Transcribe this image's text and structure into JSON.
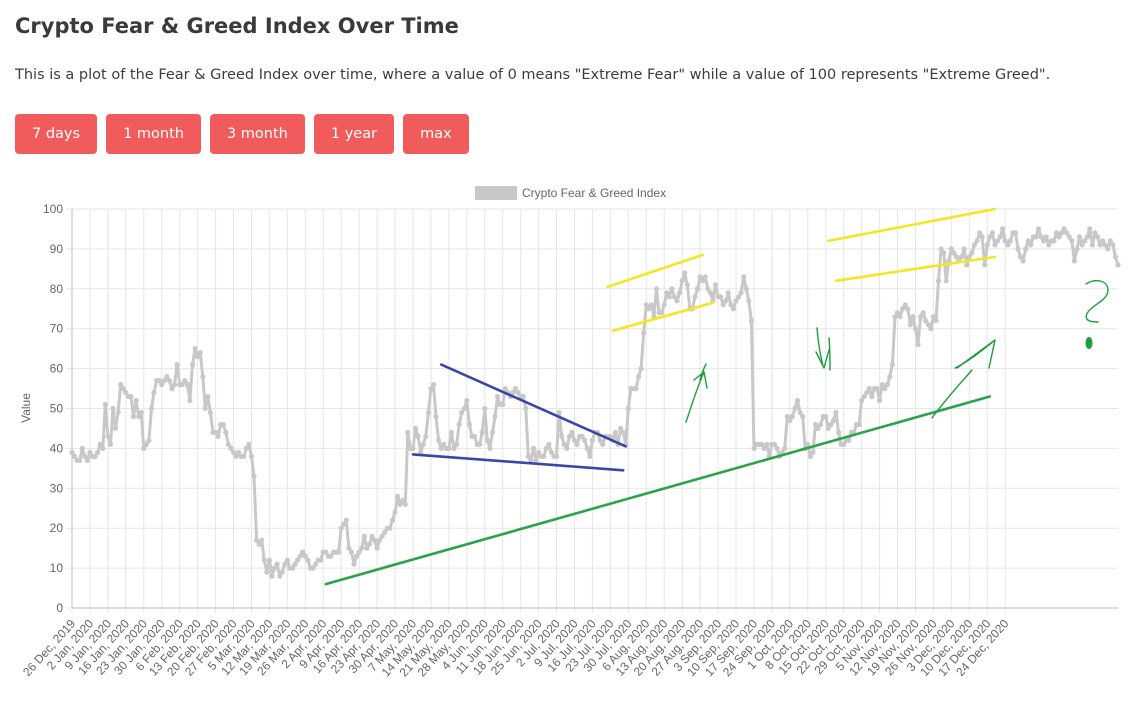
{
  "page": {
    "title": "Crypto Fear & Greed Index Over Time",
    "description": "This is a plot of the Fear & Greed Index over time, where a value of 0 means \"Extreme Fear\" while a value of 100 represents \"Extreme Greed\"."
  },
  "buttons": [
    {
      "label": "7 days"
    },
    {
      "label": "1 month"
    },
    {
      "label": "3 month"
    },
    {
      "label": "1 year"
    },
    {
      "label": "max"
    }
  ],
  "colors": {
    "button": "#f25b5b",
    "series": "#c8c8c8",
    "grid": "#e6e6e6",
    "annotation_yellow": "#f5e61e",
    "annotation_blue": "#3c46aa",
    "annotation_green": "#2aa34a",
    "annotation_handwriting": "#1e9e3c"
  },
  "chart_data": {
    "type": "line",
    "title": "",
    "xlabel": "",
    "ylabel": "Value",
    "ylim": [
      0,
      100
    ],
    "yticks": [
      0,
      10,
      20,
      30,
      40,
      50,
      60,
      70,
      80,
      90,
      100
    ],
    "grid": true,
    "legend_position": "top-center",
    "x_tick_labels": [
      "26 Dec, 2019",
      "2 Jan, 2020",
      "9 Jan, 2020",
      "16 Jan, 2020",
      "23 Jan, 2020",
      "30 Jan, 2020",
      "6 Feb, 2020",
      "13 Feb, 2020",
      "20 Feb, 2020",
      "27 Feb, 2020",
      "5 Mar, 2020",
      "12 Mar, 2020",
      "19 Mar, 2020",
      "26 Mar, 2020",
      "2 Apr, 2020",
      "9 Apr, 2020",
      "16 Apr, 2020",
      "23 Apr, 2020",
      "30 Apr, 2020",
      "7 May, 2020",
      "14 May, 2020",
      "21 May, 2020",
      "28 May, 2020",
      "4 Jun, 2020",
      "11 Jun, 2020",
      "18 Jun, 2020",
      "25 Jun, 2020",
      "2 Jul, 2020",
      "9 Jul, 2020",
      "16 Jul, 2020",
      "23 Jul, 2020",
      "30 Jul, 2020",
      "6 Aug, 2020",
      "13 Aug, 2020",
      "20 Aug, 2020",
      "27 Aug, 2020",
      "3 Sep, 2020",
      "10 Sep, 2020",
      "17 Sep, 2020",
      "24 Sep, 2020",
      "1 Oct, 2020",
      "8 Oct, 2020",
      "15 Oct, 2020",
      "22 Oct, 2020",
      "29 Oct, 2020",
      "5 Nov, 2020",
      "12 Nov, 2020",
      "19 Nov, 2020",
      "26 Nov, 2020",
      "3 Dec, 2020",
      "10 Dec, 2020",
      "17 Dec, 2020",
      "24 Dec, 2020"
    ],
    "series": [
      {
        "name": "Crypto Fear & Greed Index",
        "color": "#c8c8c8",
        "values": [
          39,
          38,
          37,
          37,
          40,
          38,
          37,
          39,
          38,
          38,
          39,
          41,
          40,
          51,
          43,
          41,
          50,
          45,
          49,
          56,
          55,
          54,
          53,
          53,
          48,
          52,
          48,
          49,
          40,
          41,
          42,
          50,
          54,
          57,
          57,
          56,
          57,
          58,
          57,
          55,
          56,
          61,
          56,
          56,
          57,
          56,
          52,
          61,
          65,
          63,
          64,
          58,
          50,
          53,
          49,
          44,
          44,
          43,
          46,
          46,
          44,
          41,
          40,
          39,
          38,
          39,
          38,
          38,
          40,
          41,
          38,
          33,
          17,
          16,
          17,
          12,
          9,
          12,
          8,
          10,
          11,
          8,
          9,
          11,
          12,
          10,
          10,
          11,
          12,
          13,
          14,
          13,
          12,
          10,
          10,
          11,
          12,
          12,
          14,
          14,
          13,
          13,
          14,
          14,
          14,
          20,
          21,
          22,
          15,
          14,
          11,
          13,
          14,
          15,
          18,
          15,
          16,
          18,
          17,
          15,
          17,
          18,
          19,
          20,
          20,
          22,
          24,
          28,
          26,
          27,
          26,
          44,
          40,
          40,
          45,
          43,
          39,
          41,
          43,
          49,
          55,
          56,
          48,
          42,
          40,
          41,
          40,
          40,
          44,
          40,
          41,
          46,
          49,
          50,
          52,
          46,
          43,
          43,
          41,
          41,
          44,
          50,
          42,
          40,
          44,
          48,
          53,
          51,
          51,
          55,
          54,
          53,
          54,
          55,
          54,
          53,
          53,
          50,
          38,
          37,
          40,
          37,
          39,
          38,
          38,
          40,
          41,
          39,
          38,
          38,
          49,
          43,
          41,
          40,
          43,
          44,
          42,
          41,
          43,
          43,
          42,
          40,
          38,
          42,
          44,
          44,
          42,
          41,
          43,
          43,
          43,
          42,
          44,
          41,
          45,
          44,
          41,
          50,
          55,
          55,
          55,
          58,
          60,
          69,
          76,
          75,
          76,
          73,
          80,
          74,
          74,
          76,
          79,
          78,
          80,
          78,
          77,
          79,
          82,
          84,
          81,
          75,
          75,
          78,
          80,
          83,
          82,
          83,
          80,
          79,
          77,
          81,
          78,
          78,
          76,
          77,
          79,
          76,
          75,
          77,
          78,
          79,
          83,
          80,
          77,
          72,
          40,
          41,
          41,
          41,
          40,
          41,
          38,
          41,
          41,
          40,
          38,
          39,
          40,
          48,
          47,
          48,
          50,
          52,
          49,
          48,
          40,
          41,
          38,
          39,
          46,
          45,
          46,
          48,
          48,
          45,
          46,
          47,
          49,
          44,
          41,
          41,
          42,
          42,
          44,
          44,
          46,
          46,
          52,
          53,
          54,
          55,
          53,
          55,
          55,
          52,
          56,
          55,
          56,
          58,
          61,
          73,
          74,
          73,
          75,
          76,
          75,
          71,
          73,
          70,
          66,
          73,
          74,
          72,
          71,
          70,
          73,
          72,
          82,
          90,
          89,
          82,
          87,
          90,
          89,
          88,
          87,
          88,
          90,
          86,
          88,
          89,
          91,
          92,
          94,
          93,
          86,
          91,
          93,
          94,
          91,
          92,
          93,
          95,
          92,
          91,
          92,
          94,
          94,
          90,
          88,
          87,
          90,
          92,
          91,
          93,
          93,
          95,
          93,
          92,
          93,
          91,
          92,
          92,
          94,
          93,
          94,
          95,
          94,
          93,
          92,
          87,
          90,
          93,
          91,
          92,
          93,
          95,
          91,
          94,
          93,
          91,
          92,
          91,
          90,
          92,
          91,
          88,
          86
        ]
      }
    ],
    "annotations": [
      {
        "color": "#f5e61e",
        "points": [
          [
            209,
            80.5
          ],
          [
            246,
            88.5
          ]
        ]
      },
      {
        "color": "#f5e61e",
        "points": [
          [
            211,
            69.5
          ],
          [
            250,
            76.5
          ]
        ]
      },
      {
        "color": "#f5e61e",
        "points": [
          [
            295,
            92
          ],
          [
            360,
            100
          ]
        ]
      },
      {
        "color": "#f5e61e",
        "points": [
          [
            298,
            82
          ],
          [
            360,
            88
          ]
        ]
      },
      {
        "color": "#3c46aa",
        "points": [
          [
            144,
            61
          ],
          [
            216,
            40.5
          ]
        ]
      },
      {
        "color": "#3c46aa",
        "points": [
          [
            133,
            38.5
          ],
          [
            215,
            34.5
          ]
        ]
      },
      {
        "color": "#2aa34a",
        "points": [
          [
            99,
            6
          ],
          [
            358,
            53
          ]
        ]
      }
    ]
  }
}
